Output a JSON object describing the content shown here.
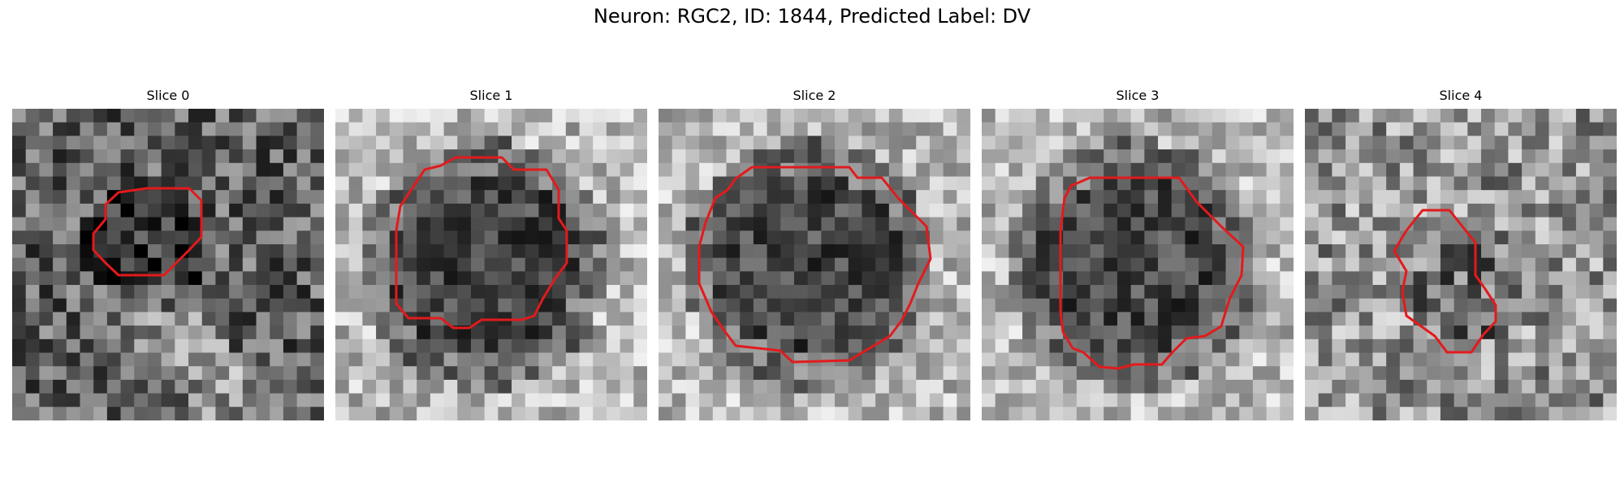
{
  "figure": {
    "title": "Neuron: RGC2, ID: 1844, Predicted Label: DV"
  },
  "colors": {
    "contour": "#e31a1c",
    "background": "#ffffff"
  },
  "slices": [
    {
      "title": "Slice 0",
      "pattern": "dark-field-center-blob",
      "mean_brightness": 0.32
    },
    {
      "title": "Slice 1",
      "pattern": "dark-cell-bright-surround",
      "mean_brightness": 0.58
    },
    {
      "title": "Slice 2",
      "pattern": "dark-cell-bright-surround",
      "mean_brightness": 0.62
    },
    {
      "title": "Slice 3",
      "pattern": "dark-cell-bright-surround",
      "mean_brightness": 0.6
    },
    {
      "title": "Slice 4",
      "pattern": "gray-noisy-small-cell",
      "mean_brightness": 0.55
    }
  ]
}
